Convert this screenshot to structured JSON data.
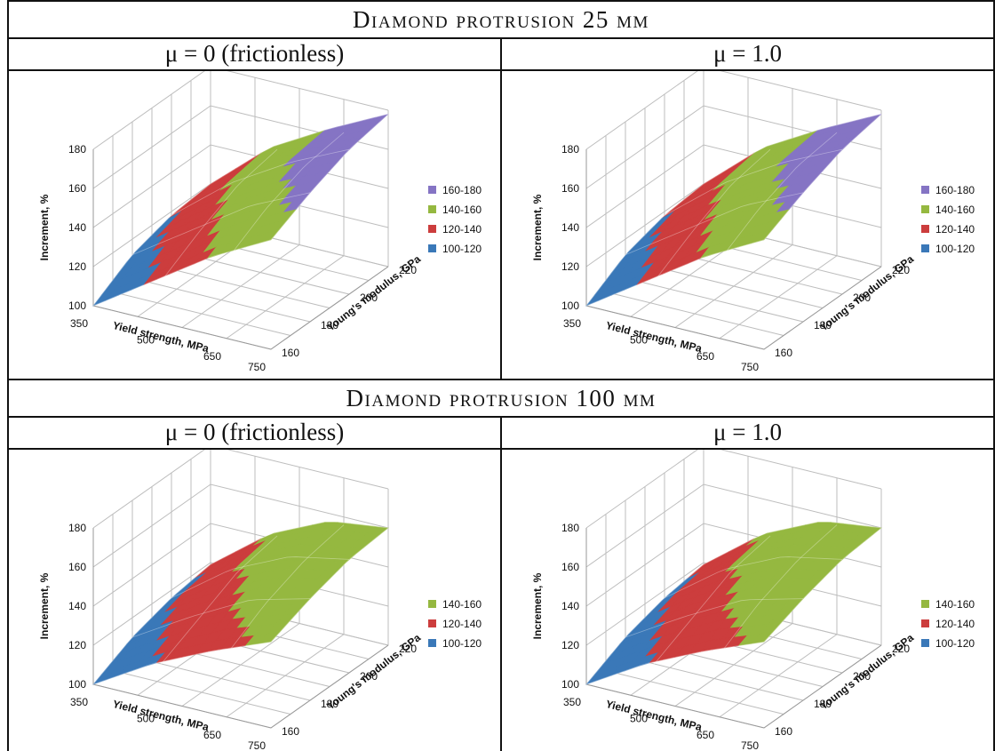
{
  "headers": {
    "top": "Diamond protrusion 25 μm",
    "bottom": "Diamond protrusion 100 μm",
    "col_left": "μ = 0 (frictionless)",
    "col_right": "μ = 1.0"
  },
  "axes": {
    "z_label": "Increment, %",
    "x_label": "Yield strength, MPa",
    "y_label": "Young's modulus, GPa",
    "z_ticks": [
      "100",
      "120",
      "140",
      "160",
      "180"
    ],
    "x_ticks": [
      "350",
      "500",
      "650",
      "750"
    ],
    "y_ticks": [
      "160",
      "180",
      "200",
      "220"
    ]
  },
  "colors": {
    "100-120": "#3a78b8",
    "120-140": "#cc3d3d",
    "140-160": "#95b840",
    "160-180": "#8574c4"
  },
  "chart_data": [
    {
      "type": "surface",
      "title": "Diamond protrusion 25 μm, μ = 0 (frictionless)",
      "x": [
        350,
        500,
        650,
        750
      ],
      "y": [
        160,
        180,
        200,
        220
      ],
      "z": [
        [
          100,
          112,
          118,
          120
        ],
        [
          120,
          132,
          142,
          146
        ],
        [
          140,
          152,
          160,
          163
        ],
        [
          156,
          166,
          174,
          178
        ]
      ],
      "xlim": [
        350,
        750
      ],
      "ylim": [
        160,
        220
      ],
      "zlim": [
        100,
        180
      ],
      "legend": [
        "160-180",
        "140-160",
        "120-140",
        "100-120"
      ]
    },
    {
      "type": "surface",
      "title": "Diamond protrusion 25 μm, μ = 1.0",
      "x": [
        350,
        500,
        650,
        750
      ],
      "y": [
        160,
        180,
        200,
        220
      ],
      "z": [
        [
          100,
          112,
          118,
          120
        ],
        [
          120,
          132,
          142,
          146
        ],
        [
          140,
          152,
          160,
          163
        ],
        [
          156,
          166,
          174,
          178
        ]
      ],
      "xlim": [
        350,
        750
      ],
      "ylim": [
        160,
        220
      ],
      "zlim": [
        100,
        180
      ],
      "legend": [
        "160-180",
        "140-160",
        "120-140",
        "100-120"
      ]
    },
    {
      "type": "surface",
      "title": "Diamond protrusion 100 μm, μ = 0 (frictionless)",
      "x": [
        350,
        500,
        650,
        750
      ],
      "y": [
        160,
        180,
        200,
        220
      ],
      "z": [
        [
          100,
          110,
          116,
          119
        ],
        [
          118,
          128,
          138,
          142
        ],
        [
          132,
          144,
          152,
          156
        ],
        [
          144,
          152,
          158,
          160
        ]
      ],
      "xlim": [
        350,
        750
      ],
      "ylim": [
        160,
        220
      ],
      "zlim": [
        100,
        180
      ],
      "legend": [
        "140-160",
        "120-140",
        "100-120"
      ]
    },
    {
      "type": "surface",
      "title": "Diamond protrusion 100 μm, μ = 1.0",
      "x": [
        350,
        500,
        650,
        750
      ],
      "y": [
        160,
        180,
        200,
        220
      ],
      "z": [
        [
          100,
          110,
          116,
          119
        ],
        [
          118,
          128,
          138,
          142
        ],
        [
          132,
          144,
          152,
          156
        ],
        [
          144,
          152,
          158,
          160
        ]
      ],
      "xlim": [
        350,
        750
      ],
      "ylim": [
        160,
        220
      ],
      "zlim": [
        100,
        180
      ],
      "legend": [
        "140-160",
        "120-140",
        "100-120"
      ]
    }
  ]
}
